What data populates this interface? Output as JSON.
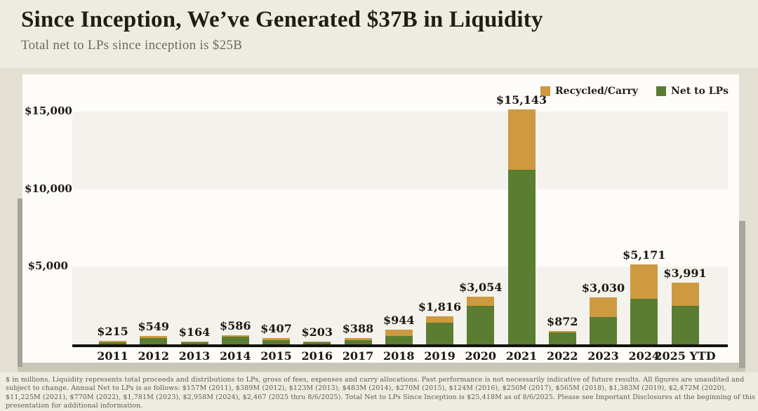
{
  "header": {
    "title": "Since Inception, We’ve Generated $37B in Liquidity",
    "subtitle": "Total net to LPs since inception is $25B"
  },
  "legend": [
    {
      "name": "recycled-carry",
      "label": "Recycled/Carry",
      "color": "#ce9a40"
    },
    {
      "name": "net-to-lps",
      "label": "Net to LPs",
      "color": "#5b7d31"
    }
  ],
  "chart_data": {
    "type": "bar",
    "stacked": true,
    "title": "Since Inception, We’ve Generated $37B in Liquidity",
    "units": "$ in millions",
    "categories": [
      "2011",
      "2012",
      "2013",
      "2014",
      "2015",
      "2016",
      "2017",
      "2018",
      "2019",
      "2020",
      "2021",
      "2022",
      "2023",
      "2024",
      "2025 YTD"
    ],
    "series": [
      {
        "name": "Net to LPs",
        "color": "#5b7d31",
        "values": [
          157,
          389,
          123,
          483,
          270,
          124,
          250,
          565,
          1383,
          2472,
          11225,
          770,
          1781,
          2958,
          2467
        ]
      },
      {
        "name": "Recycled/Carry",
        "color": "#ce9a40",
        "values": [
          58,
          160,
          41,
          103,
          137,
          79,
          138,
          379,
          433,
          582,
          3918,
          102,
          1249,
          2213,
          1524
        ]
      }
    ],
    "totals": [
      215,
      549,
      164,
      586,
      407,
      203,
      388,
      944,
      1816,
      3054,
      15143,
      872,
      3030,
      5171,
      3991
    ],
    "total_labels": [
      "$215",
      "$549",
      "$164",
      "$586",
      "$407",
      "$203",
      "$388",
      "$944",
      "$1,816",
      "$3,054",
      "$15,143",
      "$872",
      "$3,030",
      "$5,171",
      "$3,991"
    ],
    "y_ticks": [
      {
        "label": "$5,000",
        "value": 5000
      },
      {
        "label": "$10,000",
        "value": 10000
      },
      {
        "label": "$15,000",
        "value": 15000
      }
    ],
    "ylim": [
      0,
      17400
    ],
    "grid": "alternating-horizontal-bands",
    "legend_position": "top-right"
  },
  "footnote": {
    "text": "$ in millions. Liquidity represents total proceeds and distributions to LPs, gross of fees, expenses and carry allocations. Past performance is not necessarily indicative of future results. All figures are unaudited and subject to change. Annual Net to LPs is as follows: $157M (2011), $389M (2012), $123M (2013), $483M (2014), $270M (2015), $124M (2016), $250M (2017), $565M (2018), $1,383M (2019), $2,472M (2020), $11,225M (2021), $770M (2022), $1,781M (2023), $2,958M (2024), $2,467 (2025 thru 8/6/2025). Total Net to LPs Since Inception is $25,418M as of 8/6/2025. Please see Important Disclosures at the beginning of this presentation for additional information."
  }
}
